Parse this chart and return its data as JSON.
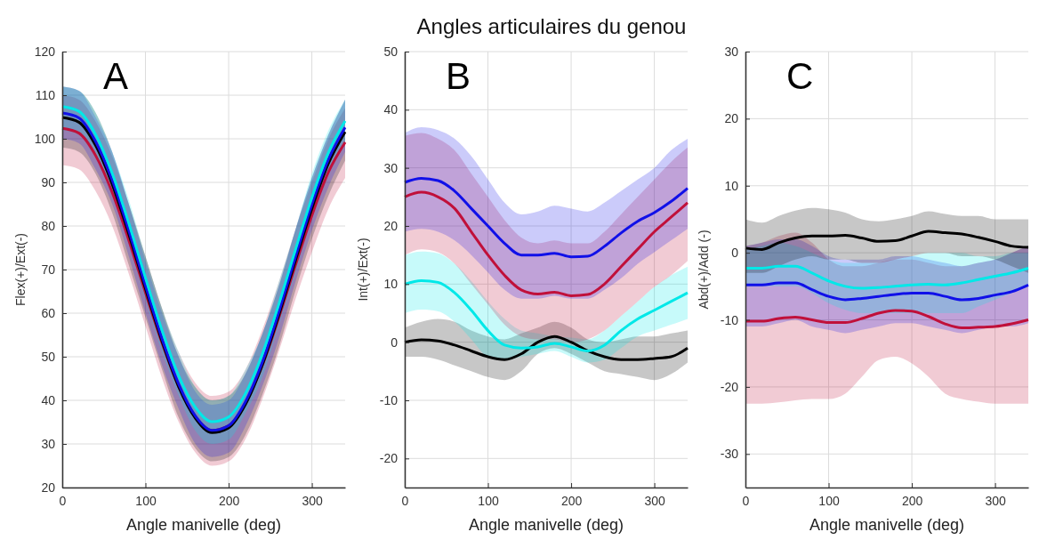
{
  "chart_data": [
    {
      "type": "line",
      "ylabel": "Flex(+)/Ext(-)",
      "xlabel": "Angle manivelle (deg)",
      "annotations": [
        "A"
      ],
      "grid": true,
      "xlim": [
        0,
        340
      ],
      "xticks": [
        0,
        100,
        200,
        300
      ],
      "ylim": [
        20,
        120
      ],
      "yticks": [
        20,
        30,
        40,
        50,
        60,
        70,
        80,
        90,
        100,
        110,
        120
      ],
      "x": [
        0,
        20,
        40,
        60,
        80,
        100,
        120,
        140,
        160,
        180,
        200,
        220,
        240,
        260,
        280,
        300,
        320,
        340
      ],
      "series": [
        {
          "color": "#c0103a",
          "values": [
            102.4,
            101.3,
            96.2,
            87.7,
            76.7,
            64.7,
            53.1,
            43.1,
            36.3,
            33.1,
            34.2,
            39.3,
            47.8,
            58.8,
            70.8,
            82.4,
            92.4,
            99.2
          ],
          "lower": [
            94,
            93,
            88,
            80,
            69,
            57,
            45,
            35,
            28,
            25,
            26,
            31,
            40,
            51,
            63,
            74,
            84,
            91
          ],
          "upper": [
            110,
            109,
            104,
            96,
            85,
            73,
            61,
            51,
            44,
            41,
            42,
            47,
            56,
            67,
            79,
            90,
            100,
            107
          ]
        },
        {
          "color": "#000000",
          "values": [
            104.9,
            103.8,
            98.5,
            89.6,
            78.1,
            65.6,
            53.5,
            43.1,
            35.9,
            32.6,
            33.7,
            39.0,
            47.9,
            59.4,
            71.9,
            84.0,
            94.4,
            101.6
          ],
          "lower": [
            98,
            97,
            92,
            83,
            71,
            59,
            47,
            36,
            29,
            26,
            27,
            32,
            41,
            52,
            65,
            77,
            87,
            95
          ],
          "upper": [
            112,
            111,
            106,
            97,
            85,
            73,
            61,
            50,
            43,
            40,
            41,
            46,
            55,
            66,
            79,
            91,
            101,
            109
          ]
        },
        {
          "color": "#1010e8",
          "values": [
            105.9,
            104.8,
            99.4,
            90.5,
            78.9,
            66.3,
            54.1,
            43.7,
            36.4,
            33.1,
            34.2,
            39.6,
            48.5,
            60.1,
            72.7,
            84.9,
            95.3,
            102.6
          ],
          "lower": [
            100,
            99,
            93,
            85,
            73,
            60,
            48,
            38,
            30,
            27,
            28,
            34,
            43,
            54,
            67,
            79,
            89,
            97
          ],
          "upper": [
            112,
            111,
            105,
            97,
            85,
            72,
            60,
            50,
            42,
            39,
            40,
            46,
            55,
            66,
            79,
            91,
            101,
            109
          ]
        },
        {
          "color": "#00e8e8",
          "values": [
            107.4,
            106.3,
            101.0,
            92.1,
            80.6,
            68.1,
            56.0,
            45.6,
            38.4,
            35.1,
            36.2,
            41.5,
            50.4,
            61.9,
            74.4,
            86.5,
            96.9,
            104.1
          ],
          "lower": [
            102,
            101,
            96,
            87,
            76,
            63,
            51,
            41,
            33,
            30,
            31,
            37,
            45,
            57,
            69,
            82,
            92,
            99
          ],
          "upper": [
            112,
            111,
            106,
            97,
            86,
            73,
            61,
            51,
            43,
            40,
            41,
            47,
            55,
            67,
            79,
            92,
            102,
            109
          ]
        }
      ]
    },
    {
      "type": "line",
      "title": "Angles articulaires du genou",
      "ylabel": "Int(+)/Ext(-)",
      "xlabel": "Angle manivelle (deg)",
      "annotations": [
        "B"
      ],
      "grid": true,
      "xlim": [
        0,
        340
      ],
      "xticks": [
        0,
        100,
        200,
        300
      ],
      "ylim": [
        -25,
        50
      ],
      "yticks": [
        -20,
        -10,
        0,
        10,
        20,
        30,
        40,
        50
      ],
      "x": [
        0,
        20,
        40,
        60,
        80,
        100,
        120,
        140,
        160,
        180,
        200,
        220,
        240,
        260,
        280,
        300,
        320,
        340
      ],
      "series": [
        {
          "color": "#000000",
          "values": [
            0,
            0.4,
            0.2,
            -0.5,
            -1.5,
            -2.5,
            -3,
            -2,
            0,
            1,
            0,
            -1.5,
            -2.5,
            -3,
            -3,
            -2.8,
            -2.5,
            -1
          ],
          "lower": [
            -2.5,
            -2.5,
            -3,
            -4,
            -5,
            -6,
            -6.5,
            -5,
            -2,
            -1,
            -2,
            -3.5,
            -5,
            -5.5,
            -6,
            -6.5,
            -5.5,
            -3.5
          ],
          "upper": [
            2.5,
            3.5,
            4,
            3.5,
            2,
            1,
            0.5,
            1.5,
            2.5,
            3.5,
            2.5,
            0.5,
            0,
            0.5,
            1,
            1,
            1.5,
            2
          ]
        },
        {
          "color": "#00e8e8",
          "values": [
            10,
            10.6,
            10.3,
            8.5,
            5.5,
            2,
            -0.5,
            -1,
            -0.8,
            -0.2,
            -0.8,
            -1.5,
            -0.5,
            2,
            4,
            5.5,
            7,
            8.5
          ],
          "lower": [
            5,
            5.6,
            5.3,
            3.5,
            0.5,
            -2.5,
            -3,
            -2.5,
            -2,
            -1.5,
            -2.5,
            -3.5,
            -3,
            -1,
            1,
            2,
            3,
            4
          ],
          "upper": [
            15,
            15.6,
            15.3,
            13.5,
            10.5,
            7,
            4,
            2,
            1.5,
            1,
            0.8,
            0.5,
            2,
            4.5,
            7,
            9.5,
            11.5,
            13
          ]
        },
        {
          "color": "#c0103a",
          "values": [
            25,
            25.8,
            25,
            23,
            19,
            15,
            11.5,
            9,
            8.3,
            8.6,
            8,
            8.2,
            10,
            13,
            16,
            19,
            21.5,
            24
          ],
          "lower": [
            15,
            16,
            15.5,
            13.5,
            10,
            6.5,
            3,
            1,
            0.5,
            0.5,
            0,
            0.5,
            2,
            4.5,
            7,
            9.5,
            11.5,
            14
          ],
          "upper": [
            35.5,
            36,
            35,
            33,
            29,
            25,
            21,
            18,
            17,
            17.5,
            17,
            17,
            19,
            22,
            25,
            28,
            31,
            33.5
          ]
        },
        {
          "color": "#1010e8",
          "values": [
            27.5,
            28.2,
            27.8,
            26,
            23,
            20,
            17,
            15,
            15,
            15.3,
            14.7,
            14.8,
            16.5,
            18.8,
            20.8,
            22.3,
            24.2,
            26.5
          ],
          "lower": [
            19,
            19.5,
            19,
            17.5,
            15,
            12,
            9,
            7.5,
            7.5,
            8,
            7.5,
            7.5,
            9,
            11,
            13.5,
            15.5,
            17.5,
            19.5
          ],
          "upper": [
            36,
            37,
            36.5,
            35,
            32,
            28,
            24,
            22,
            22.5,
            23.5,
            23,
            22.5,
            24,
            26,
            28,
            30,
            33,
            35
          ]
        }
      ]
    },
    {
      "type": "line",
      "ylabel": "Abd(+)/Add (-)",
      "xlabel": "Angle manivelle (deg)",
      "annotations": [
        "C"
      ],
      "grid": true,
      "xlim": [
        0,
        340
      ],
      "xticks": [
        0,
        100,
        200,
        300
      ],
      "ylim": [
        -35,
        30
      ],
      "yticks": [
        -30,
        -20,
        -10,
        0,
        10,
        20,
        30
      ],
      "x": [
        0,
        20,
        40,
        60,
        80,
        100,
        120,
        140,
        160,
        180,
        200,
        220,
        240,
        260,
        280,
        300,
        320,
        340
      ],
      "series": [
        {
          "color": "#c0103a",
          "values": [
            -10.2,
            -10.2,
            -9.8,
            -9.6,
            -10,
            -10.4,
            -10.4,
            -9.8,
            -9,
            -8.6,
            -8.7,
            -9.5,
            -10.6,
            -11.2,
            -11.1,
            -11,
            -10.6,
            -10
          ],
          "lower": [
            -22.5,
            -22.5,
            -22.3,
            -22,
            -21.8,
            -21.8,
            -21,
            -18.5,
            -16,
            -15.5,
            -16.5,
            -18.5,
            -21,
            -21.8,
            -22.2,
            -22.5,
            -22.5,
            -22.5
          ],
          "upper": [
            1,
            1.5,
            2.5,
            3,
            1.5,
            -1,
            -2,
            -2,
            -1.5,
            -1,
            -1,
            -1.5,
            -2,
            -2,
            -1.5,
            -1,
            0,
            1
          ]
        },
        {
          "color": "#1010e8",
          "values": [
            -4.8,
            -4.8,
            -4.5,
            -4.5,
            -5.5,
            -6.5,
            -7,
            -6.8,
            -6.5,
            -6.2,
            -6,
            -6,
            -6.5,
            -7,
            -6.8,
            -6.3,
            -5.8,
            -4.8
          ],
          "lower": [
            -11,
            -11,
            -10.5,
            -10,
            -11,
            -11.5,
            -12,
            -11.5,
            -11,
            -10.5,
            -10.5,
            -11,
            -11.5,
            -12,
            -11.5,
            -11,
            -11,
            -10.5
          ],
          "upper": [
            1,
            1.5,
            2,
            2,
            1,
            -0.5,
            -1,
            -1,
            -1,
            -0.5,
            -0.5,
            -1,
            -1.5,
            -2,
            -1.5,
            -1,
            0,
            1
          ]
        },
        {
          "color": "#00e8e8",
          "values": [
            -2.3,
            -2.3,
            -2,
            -2,
            -3,
            -4.2,
            -5,
            -5.3,
            -5.2,
            -5,
            -4.8,
            -4.7,
            -4.8,
            -4.5,
            -4,
            -3.5,
            -3,
            -2.3
          ],
          "lower": [
            -5,
            -5,
            -5,
            -5,
            -6,
            -7.5,
            -8.5,
            -9,
            -9,
            -9,
            -9,
            -9,
            -9,
            -9,
            -8,
            -7,
            -6,
            -5
          ],
          "upper": [
            0.5,
            1,
            1.5,
            1,
            0,
            -1,
            -1.5,
            -1.5,
            -1.5,
            -1,
            -0.5,
            0,
            0,
            0,
            -0.5,
            -0.5,
            0,
            0
          ]
        },
        {
          "color": "#000000",
          "values": [
            0.7,
            0.5,
            1.5,
            2.2,
            2.5,
            2.5,
            2.6,
            2.2,
            1.7,
            1.8,
            2.5,
            3.2,
            3,
            2.8,
            2.3,
            1.7,
            1,
            0.8
          ],
          "lower": [
            -3,
            -3,
            -2,
            -1,
            -0.5,
            -1,
            -1,
            -1.5,
            -1.5,
            -1,
            -0.5,
            0,
            0,
            -0.5,
            -0.5,
            -1,
            -2,
            -3
          ],
          "upper": [
            5,
            4.5,
            5.5,
            6.3,
            6.7,
            6.5,
            6,
            5,
            4.7,
            5,
            5.5,
            6.2,
            5.8,
            5.5,
            5.5,
            5,
            5,
            5
          ]
        }
      ]
    }
  ]
}
